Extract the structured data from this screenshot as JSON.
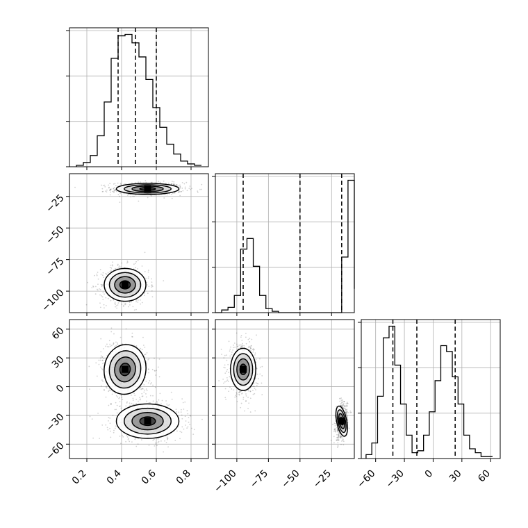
{
  "chart_data": {
    "type": "corner",
    "grid": true,
    "parameters": [
      {
        "key": "p0",
        "range": [
          0.1,
          0.9
        ],
        "ticks": [
          0.2,
          0.4,
          0.6,
          0.8
        ],
        "tick_labels": [
          "0.2",
          "0.4",
          "0.6",
          "0.8"
        ],
        "quantile_lines": [
          0.38,
          0.48,
          0.6
        ],
        "hist_bins": [
          0.14,
          0.18,
          0.22,
          0.26,
          0.3,
          0.34,
          0.38,
          0.42,
          0.46,
          0.5,
          0.54,
          0.58,
          0.62,
          0.66,
          0.7,
          0.74,
          0.78,
          0.82,
          0.86
        ],
        "hist_counts": [
          0.01,
          0.03,
          0.08,
          0.22,
          0.46,
          0.77,
          0.93,
          0.94,
          0.88,
          0.78,
          0.62,
          0.42,
          0.28,
          0.16,
          0.09,
          0.04,
          0.02,
          0.01
        ]
      },
      {
        "key": "p1",
        "range": [
          -117,
          -7
        ],
        "ticks": [
          -100,
          -75,
          -50,
          -25
        ],
        "tick_labels": [
          "−100",
          "−75",
          "−50",
          "−25"
        ],
        "quantile_lines": [
          -95,
          -50,
          -17
        ],
        "hist_bins": [
          -117,
          -112,
          -107,
          -102,
          -97,
          -92,
          -87,
          -82,
          -77,
          -72,
          -67,
          -62,
          -57,
          -52,
          -47,
          -42,
          -37,
          -32,
          -27,
          -22,
          -17,
          -12,
          -7
        ],
        "hist_counts": [
          0.0,
          0.02,
          0.04,
          0.13,
          0.48,
          0.56,
          0.35,
          0.13,
          0.03,
          0.01,
          0.0,
          0.0,
          0.0,
          0.0,
          0.0,
          0.0,
          0.0,
          0.0,
          0.0,
          0.0,
          0.42,
          1.0,
          0.18
        ]
      },
      {
        "key": "p2",
        "range": [
          -75,
          70
        ],
        "ticks": [
          -60,
          -30,
          0,
          30,
          60
        ],
        "tick_labels": [
          "−60",
          "−30",
          "0",
          "30",
          "60"
        ],
        "quantile_lines": [
          -42,
          -17,
          23
        ],
        "hist_bins": [
          -70,
          -64,
          -58,
          -52,
          -46,
          -40,
          -34,
          -28,
          -22,
          -16,
          -10,
          -4,
          2,
          8,
          14,
          20,
          26,
          32,
          38,
          44,
          50,
          56,
          62
        ],
        "hist_counts": [
          0.02,
          0.08,
          0.32,
          0.62,
          0.68,
          0.48,
          0.28,
          0.12,
          0.03,
          0.04,
          0.12,
          0.24,
          0.4,
          0.58,
          0.55,
          0.42,
          0.28,
          0.12,
          0.05,
          0.03,
          0.01,
          0.01
        ]
      }
    ],
    "panels_2d": [
      {
        "x": "p0",
        "y": "p1",
        "modes": [
          {
            "cx": 0.55,
            "cy": -19,
            "sx": 0.09,
            "sy": 2.2,
            "rho": 0.0
          },
          {
            "cx": 0.42,
            "cy": -95,
            "sx": 0.06,
            "sy": 6.5,
            "rho": 0.0
          }
        ]
      },
      {
        "x": "p0",
        "y": "p2",
        "modes": [
          {
            "cx": 0.42,
            "cy": 18,
            "sx": 0.06,
            "sy": 13,
            "rho": -0.15
          },
          {
            "cx": 0.55,
            "cy": -36,
            "sx": 0.09,
            "sy": 9,
            "rho": 0.0
          }
        ]
      },
      {
        "x": "p1",
        "y": "p2",
        "modes": [
          {
            "cx": -95,
            "cy": 18,
            "sx": 5,
            "sy": 11,
            "rho": 0.0
          },
          {
            "cx": -17,
            "cy": -36,
            "sx": 2,
            "sy": 8,
            "rho": 0.2
          }
        ]
      }
    ],
    "contour_levels_sigma": [
      0.5,
      1.0,
      1.5,
      2.0
    ]
  }
}
